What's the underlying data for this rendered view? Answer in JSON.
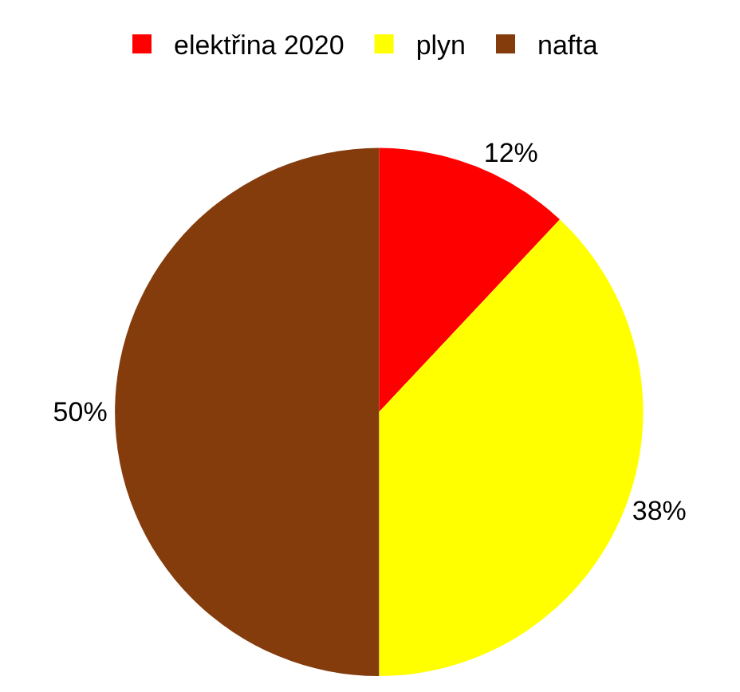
{
  "chart_data": {
    "type": "pie",
    "categories": [
      "elektřina 2020",
      "plyn",
      "nafta"
    ],
    "values": [
      12,
      38,
      50
    ],
    "colors": [
      "#ff0000",
      "#ffff00",
      "#843c0c"
    ],
    "value_labels": [
      "12%",
      "38%",
      "50%"
    ],
    "legend": "top"
  }
}
